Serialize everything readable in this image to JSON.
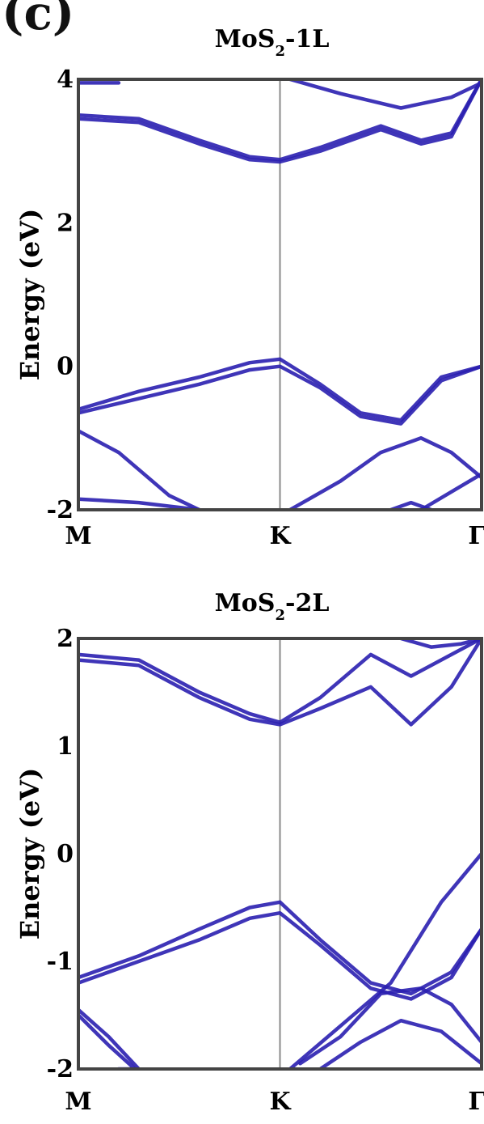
{
  "panel_label": "(c)",
  "chart_data": [
    {
      "type": "line",
      "title": "MoS2-1L",
      "title_main": "MoS",
      "title_sub": "2",
      "title_suffix": "-1L",
      "ylabel": "Energy (eV)",
      "xticks": [
        "M",
        "K",
        "Γ"
      ],
      "xtick_positions": [
        0,
        1,
        2
      ],
      "ylim": [
        -2,
        4
      ],
      "yticks": [
        "4",
        "2",
        "0",
        "-2"
      ],
      "ytick_values": [
        4,
        2,
        0,
        -2
      ],
      "line_color": "#2a1fb0",
      "series": [
        {
          "x": [
            0,
            0.3,
            0.6,
            0.85,
            1.0,
            1.2,
            1.5,
            1.7,
            1.85,
            2.0
          ],
          "y": [
            3.45,
            3.4,
            3.1,
            2.88,
            2.85,
            3.0,
            3.3,
            3.1,
            3.2,
            4.0
          ]
        },
        {
          "x": [
            0,
            0.3,
            0.6,
            0.85,
            1.0,
            1.2,
            1.5,
            1.7,
            1.85,
            2.0
          ],
          "y": [
            3.5,
            3.45,
            3.15,
            2.92,
            2.88,
            3.05,
            3.35,
            3.15,
            3.25,
            4.0
          ]
        },
        {
          "x": [
            0,
            0.2
          ],
          "y": [
            3.95,
            3.95
          ]
        },
        {
          "x": [
            1.05,
            1.3,
            1.6,
            1.85,
            2.0
          ],
          "y": [
            4.0,
            3.8,
            3.6,
            3.75,
            3.95
          ]
        },
        {
          "x": [
            0,
            0.3,
            0.6,
            0.85,
            1.0,
            1.2,
            1.4,
            1.6,
            1.8,
            2.0
          ],
          "y": [
            -0.65,
            -0.45,
            -0.25,
            -0.05,
            0.0,
            -0.3,
            -0.7,
            -0.8,
            -0.2,
            0.0
          ]
        },
        {
          "x": [
            0,
            0.3,
            0.6,
            0.85,
            1.0,
            1.2,
            1.4,
            1.6,
            1.8,
            2.0
          ],
          "y": [
            -0.6,
            -0.35,
            -0.15,
            0.05,
            0.1,
            -0.25,
            -0.65,
            -0.75,
            -0.15,
            0.0
          ]
        },
        {
          "x": [
            0,
            0.2,
            0.45,
            0.6
          ],
          "y": [
            -0.9,
            -1.2,
            -1.8,
            -2.0
          ]
        },
        {
          "x": [
            0,
            0.3,
            0.6
          ],
          "y": [
            -1.85,
            -1.9,
            -2.0
          ]
        },
        {
          "x": [
            1.05,
            1.3,
            1.5,
            1.7,
            1.85,
            2.0
          ],
          "y": [
            -2.0,
            -1.6,
            -1.2,
            -1.0,
            -1.2,
            -1.55
          ]
        },
        {
          "x": [
            1.55,
            1.65,
            1.75
          ],
          "y": [
            -2.0,
            -1.9,
            -2.0
          ]
        },
        {
          "x": [
            1.7,
            1.85,
            2.0
          ],
          "y": [
            -2.0,
            -1.75,
            -1.5
          ]
        }
      ]
    },
    {
      "type": "line",
      "title": "MoS2-2L",
      "title_main": "MoS",
      "title_sub": "2",
      "title_suffix": "-2L",
      "ylabel": "Energy (eV)",
      "xticks": [
        "M",
        "K",
        "Γ"
      ],
      "xtick_positions": [
        0,
        1,
        2
      ],
      "ylim": [
        -2,
        2
      ],
      "yticks": [
        "2",
        "1",
        "0",
        "-1",
        "-2"
      ],
      "ytick_values": [
        2,
        1,
        0,
        -1,
        -2
      ],
      "line_color": "#2a1fb0",
      "series": [
        {
          "x": [
            0,
            0.3,
            0.6,
            0.85,
            1.0,
            1.2,
            1.45,
            1.65,
            1.85,
            2.0
          ],
          "y": [
            1.8,
            1.75,
            1.45,
            1.25,
            1.2,
            1.35,
            1.55,
            1.2,
            1.55,
            2.0
          ]
        },
        {
          "x": [
            0,
            0.3,
            0.6,
            0.85,
            1.0,
            1.2,
            1.45,
            1.65,
            1.85,
            2.0
          ],
          "y": [
            1.85,
            1.8,
            1.5,
            1.3,
            1.22,
            1.45,
            1.85,
            1.65,
            1.85,
            2.0
          ]
        },
        {
          "x": [
            1.6,
            1.75,
            1.9,
            2.0
          ],
          "y": [
            2.0,
            1.92,
            1.95,
            2.0
          ]
        },
        {
          "x": [
            0,
            0.3,
            0.6,
            0.85,
            1.0,
            1.2,
            1.45,
            1.65,
            1.85,
            2.0
          ],
          "y": [
            -1.2,
            -1.0,
            -0.8,
            -0.6,
            -0.55,
            -0.85,
            -1.25,
            -1.35,
            -1.15,
            -0.7
          ]
        },
        {
          "x": [
            0,
            0.3,
            0.6,
            0.85,
            1.0,
            1.2,
            1.45,
            1.65,
            1.85,
            2.0
          ],
          "y": [
            -1.15,
            -0.95,
            -0.7,
            -0.5,
            -0.45,
            -0.8,
            -1.2,
            -1.3,
            -1.1,
            -0.7
          ]
        },
        {
          "x": [
            0,
            0.15,
            0.3
          ],
          "y": [
            -1.45,
            -1.7,
            -2.0
          ]
        },
        {
          "x": [
            0,
            0.15,
            0.28
          ],
          "y": [
            -1.5,
            -1.78,
            -2.0
          ]
        },
        {
          "x": [
            0.2,
            0.3
          ],
          "y": [
            -2.0,
            -2.0
          ]
        },
        {
          "x": [
            1.05,
            1.3,
            1.55,
            1.8,
            2.0
          ],
          "y": [
            -2.0,
            -1.6,
            -1.2,
            -0.45,
            0.0
          ]
        },
        {
          "x": [
            1.1,
            1.3,
            1.5,
            1.7,
            1.85,
            2.0
          ],
          "y": [
            -1.95,
            -1.7,
            -1.3,
            -1.25,
            -1.4,
            -1.75
          ]
        },
        {
          "x": [
            1.2,
            1.4,
            1.6,
            1.8,
            2.0
          ],
          "y": [
            -2.0,
            -1.75,
            -1.55,
            -1.65,
            -1.95
          ]
        }
      ]
    }
  ]
}
